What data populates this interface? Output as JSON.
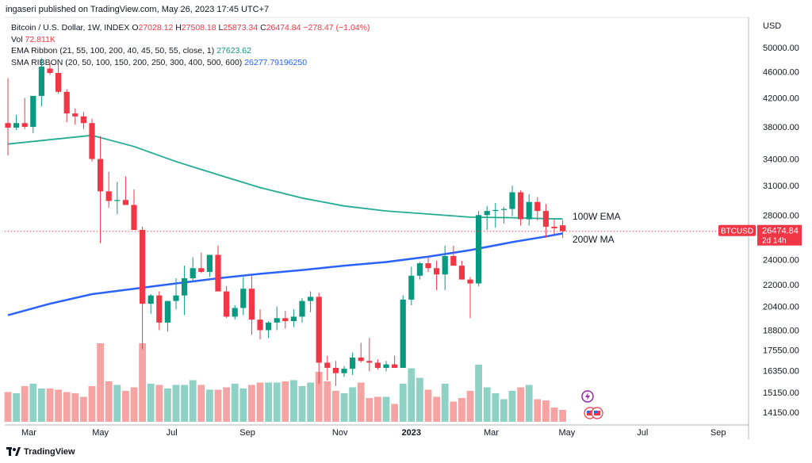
{
  "header": {
    "publisher_line": "ingaseri published on TradingView.com, May 26, 2023 17:45 UTC+7"
  },
  "legend": {
    "symbol": "Bitcoin / U.S. Dollar, 1W, INDEX",
    "o_label": "O",
    "o_value": "27028.12",
    "h_label": "H",
    "h_value": "27508.18",
    "l_label": "L",
    "l_value": "25873.34",
    "c_label": "C",
    "c_value": "26474.84",
    "change": "−278.47 (−1.04%)",
    "vol_label": "Vol",
    "vol_value": "72.811K",
    "ema_label": "EMA Ribbon (21, 55, 100, 200, 40, 45, 50, 55, close, 1)",
    "ema_value": "27623.62",
    "sma_label": "SMA RIBBON (20, 50, 100, 150, 200, 250, 300, 400, 500, 600)",
    "sma_value": "26277.79196250"
  },
  "axis": {
    "currency": "USD",
    "y_ticks": [
      "50000.00",
      "46000.00",
      "42000.00",
      "38000.00",
      "34000.00",
      "31000.00",
      "28000.00",
      "24000.00",
      "22000.00",
      "20400.00",
      "18800.00",
      "17550.00",
      "16350.00",
      "15150.00",
      "14150.00"
    ],
    "x_ticks": [
      "Mar",
      "May",
      "Jul",
      "Sep",
      "Nov",
      "2023",
      "Mar",
      "May",
      "Jul",
      "Sep"
    ],
    "price_badge": {
      "symbol": "BTCUSD",
      "price": "26474.84",
      "countdown": "2d 14h"
    }
  },
  "annotations": {
    "ema": "100W EMA",
    "sma": "200W MA"
  },
  "colors": {
    "up": "#089981",
    "down": "#f23645",
    "up_vol": "#8fd1c4",
    "down_vol": "#f5a3a3",
    "ema": "#22ab94",
    "sma": "#2962ff"
  },
  "footer": {
    "brand": "TradingView"
  },
  "chart_data": {
    "type": "candlestick",
    "y_scale": "log",
    "ylim": [
      13500,
      52000
    ],
    "x_span_weeks": [
      "2022-02-21",
      "2023-09-30"
    ],
    "candles": [
      {
        "o": 38500,
        "h": 45000,
        "l": 34400,
        "c": 37900
      },
      {
        "o": 37900,
        "h": 39600,
        "l": 37600,
        "c": 38500
      },
      {
        "o": 38500,
        "h": 42000,
        "l": 37700,
        "c": 38000
      },
      {
        "o": 38000,
        "h": 42300,
        "l": 37200,
        "c": 42300
      },
      {
        "o": 42300,
        "h": 48200,
        "l": 40800,
        "c": 46800
      },
      {
        "o": 46500,
        "h": 47400,
        "l": 45500,
        "c": 45800
      },
      {
        "o": 45800,
        "h": 47400,
        "l": 42600,
        "c": 42900
      },
      {
        "o": 42900,
        "h": 43300,
        "l": 38600,
        "c": 39800
      },
      {
        "o": 39800,
        "h": 40500,
        "l": 38300,
        "c": 39400
      },
      {
        "o": 39400,
        "h": 40000,
        "l": 37700,
        "c": 38500
      },
      {
        "o": 38500,
        "h": 39100,
        "l": 33700,
        "c": 34000
      },
      {
        "o": 34000,
        "h": 36800,
        "l": 25400,
        "c": 30400
      },
      {
        "o": 30400,
        "h": 32500,
        "l": 28700,
        "c": 29400
      },
      {
        "o": 29400,
        "h": 31400,
        "l": 28100,
        "c": 29500
      },
      {
        "o": 29500,
        "h": 32000,
        "l": 29000,
        "c": 29000
      },
      {
        "o": 29000,
        "h": 30600,
        "l": 26700,
        "c": 26600
      },
      {
        "o": 26600,
        "h": 26900,
        "l": 17600,
        "c": 20600
      },
      {
        "o": 20600,
        "h": 21300,
        "l": 19900,
        "c": 21200
      },
      {
        "o": 21200,
        "h": 21500,
        "l": 18800,
        "c": 19300
      },
      {
        "o": 19300,
        "h": 20700,
        "l": 18700,
        "c": 20800
      },
      {
        "o": 20800,
        "h": 22500,
        "l": 20200,
        "c": 21200
      },
      {
        "o": 21200,
        "h": 23500,
        "l": 19800,
        "c": 22500
      },
      {
        "o": 22500,
        "h": 24200,
        "l": 22200,
        "c": 23300
      },
      {
        "o": 23300,
        "h": 24600,
        "l": 22900,
        "c": 23000
      },
      {
        "o": 23000,
        "h": 24400,
        "l": 22600,
        "c": 24400
      },
      {
        "o": 24400,
        "h": 25200,
        "l": 21500,
        "c": 21500
      },
      {
        "o": 21500,
        "h": 21900,
        "l": 19600,
        "c": 19700
      },
      {
        "o": 19700,
        "h": 20500,
        "l": 19500,
        "c": 20300
      },
      {
        "o": 20300,
        "h": 22600,
        "l": 19800,
        "c": 21700
      },
      {
        "o": 21700,
        "h": 22700,
        "l": 18500,
        "c": 19500
      },
      {
        "o": 19500,
        "h": 20200,
        "l": 18200,
        "c": 18800
      },
      {
        "o": 18800,
        "h": 19400,
        "l": 18300,
        "c": 19300
      },
      {
        "o": 19300,
        "h": 20400,
        "l": 18800,
        "c": 19600
      },
      {
        "o": 19600,
        "h": 20100,
        "l": 18900,
        "c": 19400
      },
      {
        "o": 19400,
        "h": 20200,
        "l": 19000,
        "c": 19700
      },
      {
        "o": 19700,
        "h": 21000,
        "l": 19300,
        "c": 20800
      },
      {
        "o": 20800,
        "h": 21500,
        "l": 20000,
        "c": 21100
      },
      {
        "o": 21100,
        "h": 21400,
        "l": 15600,
        "c": 16800
      },
      {
        "o": 16800,
        "h": 17200,
        "l": 15800,
        "c": 16500
      },
      {
        "o": 16500,
        "h": 16900,
        "l": 15500,
        "c": 16200
      },
      {
        "o": 16200,
        "h": 16600,
        "l": 16000,
        "c": 16450
      },
      {
        "o": 16450,
        "h": 17400,
        "l": 16100,
        "c": 17100
      },
      {
        "o": 17100,
        "h": 18000,
        "l": 16800,
        "c": 16900
      },
      {
        "o": 16900,
        "h": 18300,
        "l": 16300,
        "c": 16800
      },
      {
        "o": 16800,
        "h": 17000,
        "l": 16400,
        "c": 16500
      },
      {
        "o": 16500,
        "h": 16900,
        "l": 16300,
        "c": 16700
      },
      {
        "o": 16700,
        "h": 17200,
        "l": 16500,
        "c": 16500
      },
      {
        "o": 16500,
        "h": 21200,
        "l": 16500,
        "c": 20900
      },
      {
        "o": 20900,
        "h": 23400,
        "l": 20500,
        "c": 22700
      },
      {
        "o": 22700,
        "h": 23800,
        "l": 22400,
        "c": 23700
      },
      {
        "o": 23700,
        "h": 24200,
        "l": 23000,
        "c": 23300
      },
      {
        "o": 23300,
        "h": 23900,
        "l": 21600,
        "c": 22800
      },
      {
        "o": 22800,
        "h": 25200,
        "l": 21600,
        "c": 24300
      },
      {
        "o": 24300,
        "h": 25200,
        "l": 23800,
        "c": 23500
      },
      {
        "o": 23500,
        "h": 23900,
        "l": 22400,
        "c": 22400
      },
      {
        "o": 22400,
        "h": 22600,
        "l": 19600,
        "c": 22100
      },
      {
        "o": 22100,
        "h": 28400,
        "l": 21900,
        "c": 28000
      },
      {
        "o": 28000,
        "h": 28900,
        "l": 26600,
        "c": 28400
      },
      {
        "o": 28400,
        "h": 29200,
        "l": 26800,
        "c": 28500
      },
      {
        "o": 28500,
        "h": 28800,
        "l": 27200,
        "c": 28600
      },
      {
        "o": 28600,
        "h": 31000,
        "l": 27900,
        "c": 30300
      },
      {
        "o": 30300,
        "h": 30500,
        "l": 27000,
        "c": 27600
      },
      {
        "o": 27600,
        "h": 30100,
        "l": 27000,
        "c": 29300
      },
      {
        "o": 29300,
        "h": 29800,
        "l": 27500,
        "c": 28400
      },
      {
        "o": 28400,
        "h": 29100,
        "l": 25900,
        "c": 26900
      },
      {
        "o": 26900,
        "h": 27600,
        "l": 26200,
        "c": 26750
      },
      {
        "o": 27028.12,
        "h": 27508.18,
        "l": 25873.34,
        "c": 26474.84
      }
    ],
    "volume_relative": [
      0.25,
      0.24,
      0.3,
      0.32,
      0.28,
      0.28,
      0.27,
      0.25,
      0.24,
      0.21,
      0.3,
      0.66,
      0.34,
      0.31,
      0.26,
      0.29,
      0.66,
      0.32,
      0.31,
      0.28,
      0.31,
      0.31,
      0.35,
      0.31,
      0.27,
      0.27,
      0.29,
      0.32,
      0.28,
      0.31,
      0.33,
      0.33,
      0.33,
      0.34,
      0.35,
      0.3,
      0.33,
      0.42,
      0.34,
      0.26,
      0.24,
      0.29,
      0.33,
      0.2,
      0.21,
      0.21,
      0.15,
      0.32,
      0.45,
      0.37,
      0.27,
      0.21,
      0.32,
      0.17,
      0.2,
      0.26,
      0.48,
      0.29,
      0.24,
      0.19,
      0.26,
      0.29,
      0.31,
      0.19,
      0.18,
      0.12,
      0.1
    ],
    "ema_100w": [
      [
        0,
        35800
      ],
      [
        10,
        36900
      ],
      [
        15,
        35500
      ],
      [
        20,
        33700
      ],
      [
        25,
        32200
      ],
      [
        30,
        30800
      ],
      [
        35,
        29700
      ],
      [
        40,
        28900
      ],
      [
        45,
        28400
      ],
      [
        50,
        28100
      ],
      [
        55,
        27800
      ],
      [
        60,
        27750
      ],
      [
        63,
        27680
      ],
      [
        66,
        27623.62
      ]
    ],
    "sma_200w": [
      [
        0,
        19800
      ],
      [
        5,
        20600
      ],
      [
        10,
        21300
      ],
      [
        15,
        21700
      ],
      [
        20,
        22100
      ],
      [
        25,
        22500
      ],
      [
        30,
        22850
      ],
      [
        35,
        23150
      ],
      [
        40,
        23500
      ],
      [
        45,
        23800
      ],
      [
        50,
        24250
      ],
      [
        55,
        24800
      ],
      [
        60,
        25500
      ],
      [
        64,
        26000
      ],
      [
        66,
        26277.79
      ]
    ]
  }
}
